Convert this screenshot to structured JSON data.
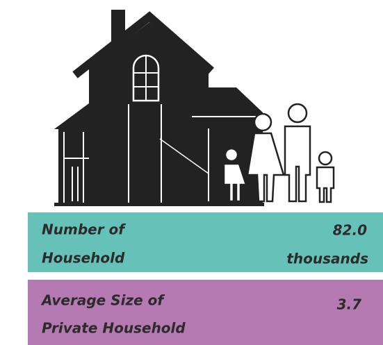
{
  "stats": [
    {
      "label_lines": [
        "Number of",
        "Household"
      ],
      "value": "82.0",
      "unit": "thousands"
    },
    {
      "label_lines": [
        "Average Size of",
        "Private Household"
      ],
      "value": "3.7"
    }
  ]
}
